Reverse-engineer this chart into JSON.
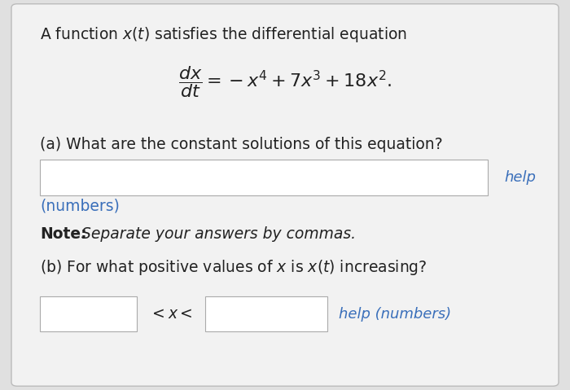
{
  "background_color": "#e0e0e0",
  "content_bg": "#f2f2f2",
  "border_color": "#bbbbbb",
  "text_color": "#222222",
  "blue_color": "#3a6fba",
  "line1": "A function $x(t)$ satisfies the differential equation",
  "help_a": "help",
  "numbers_label": "(numbers)",
  "note_bold": "Note:",
  "note_italic": " Separate your answers by commas.",
  "part_b_start": "(b) For what positive values of ",
  "part_b_mid": " is ",
  "part_b_end": " increasing?",
  "help_b": "help (numbers)",
  "input_box_color": "#ffffff",
  "input_border": "#aaaaaa",
  "font_size_main": 13.5,
  "font_size_eq": 15,
  "font_size_help": 13
}
